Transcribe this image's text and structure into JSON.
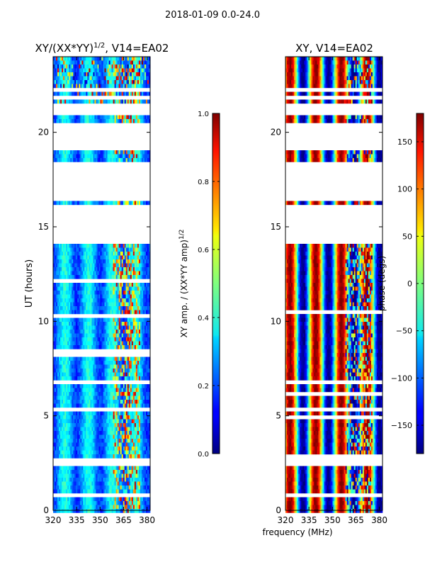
{
  "suptitle": "2018-01-09 0.0-24.0",
  "chart_data": [
    {
      "type": "heatmap",
      "title_main": "XY/(XX*YY)",
      "title_sup": "1/2",
      "title_tail": ", V14=EA02",
      "ylabel": "UT (hours)",
      "xlabel": "",
      "x_ticks": [
        "320",
        "335",
        "350",
        "365",
        "380"
      ],
      "y_ticks": [
        "0",
        "5",
        "10",
        "15",
        "20"
      ],
      "xlim": [
        320,
        382
      ],
      "ylim": [
        0,
        24
      ],
      "colorbar": {
        "label_main": "XY amp. / (XX*YY amp)",
        "label_sup": "1/2",
        "ticks": [
          "0.0",
          "0.2",
          "0.4",
          "0.6",
          "0.8",
          "1.0"
        ],
        "range": [
          0.0,
          1.0
        ]
      }
    },
    {
      "type": "heatmap",
      "title_main": "XY, V14=EA02",
      "title_sup": "",
      "title_tail": "",
      "ylabel": "",
      "xlabel": "frequency (MHz)",
      "x_ticks": [
        "320",
        "335",
        "350",
        "365",
        "380"
      ],
      "y_ticks": [
        "0",
        "5",
        "10",
        "15",
        "20"
      ],
      "xlim": [
        320,
        382
      ],
      "ylim": [
        0,
        24
      ],
      "colorbar": {
        "label_main": "phase (degs)",
        "label_sup": "",
        "ticks": [
          "−150",
          "−100",
          "−50",
          "0",
          "50",
          "100",
          "150"
        ],
        "range": [
          -180,
          180
        ]
      }
    }
  ],
  "colormap": "jet",
  "data_gaps_hours": [
    [
      0.75,
      1.0
    ],
    [
      2.4,
      2.75
    ],
    [
      6.6,
      6.85
    ],
    [
      14.0,
      16.1
    ],
    [
      16.3,
      18.4
    ],
    [
      18.55,
      18.7
    ],
    [
      19.05,
      20.4
    ],
    [
      20.95,
      21.5
    ],
    [
      21.75,
      21.85
    ],
    [
      22.1,
      22.25
    ]
  ]
}
